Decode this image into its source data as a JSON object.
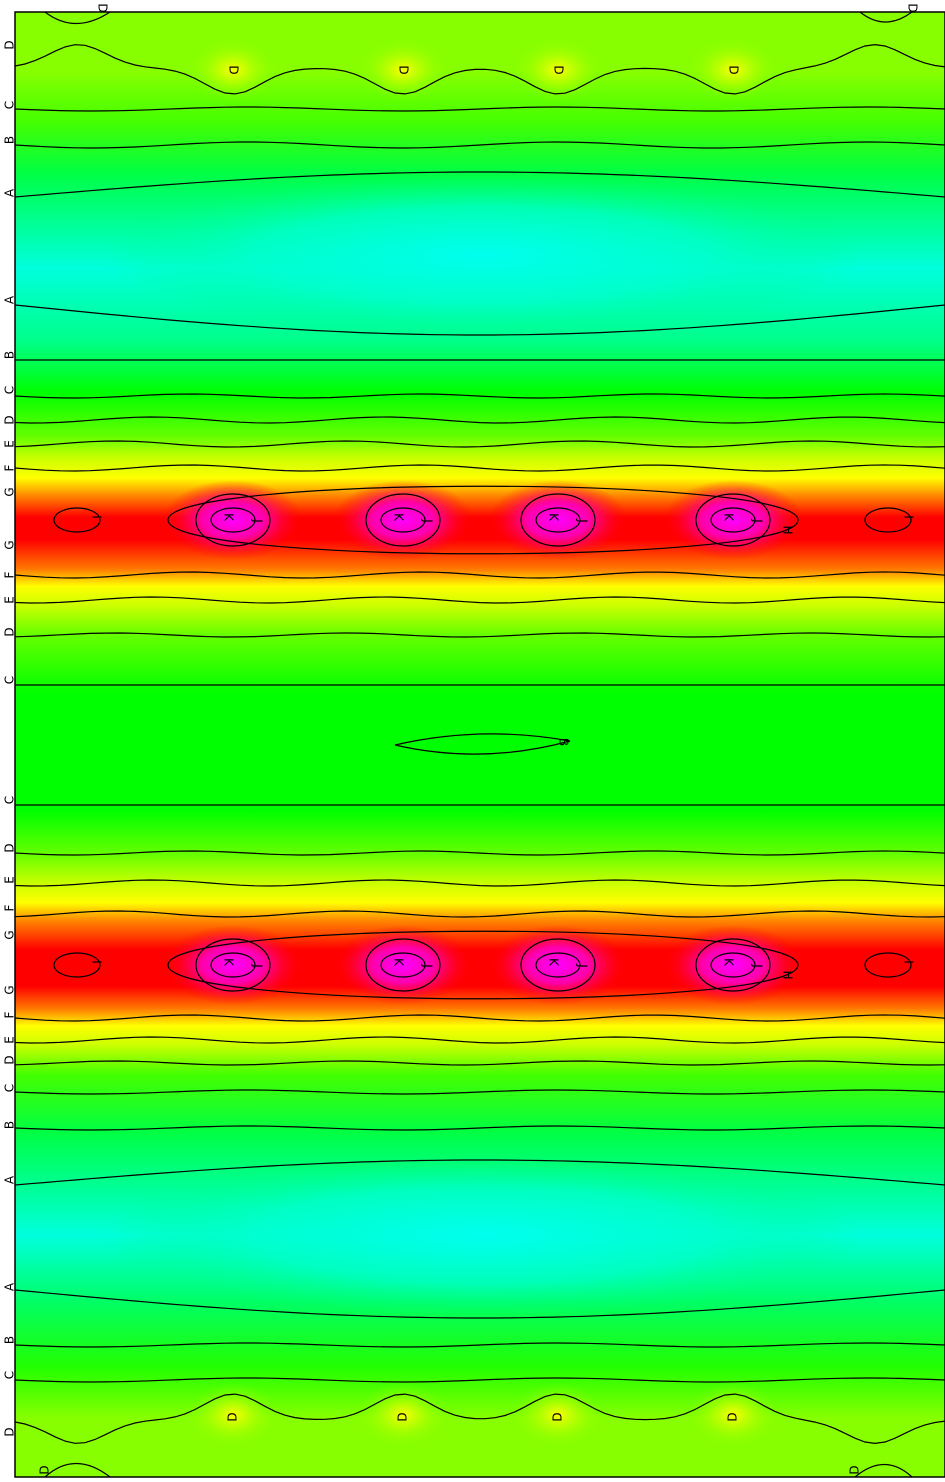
{
  "chart_data": {
    "type": "heatmap",
    "subtype": "contour",
    "title": "",
    "xlabel": "",
    "ylabel": "",
    "colormap": [
      "#00ffdd",
      "#00ff00",
      "#88ff00",
      "#ffff00",
      "#ff8800",
      "#ff0000",
      "#ff00ff"
    ],
    "levels": [
      "A",
      "B",
      "C",
      "D",
      "E",
      "F",
      "G",
      "H",
      "I",
      "J",
      "K"
    ],
    "edge_labels": [
      {
        "label": "D"
      },
      {
        "label": "C"
      },
      {
        "label": "B"
      },
      {
        "label": "A"
      },
      {
        "label": "A"
      },
      {
        "label": "B"
      },
      {
        "label": "C"
      },
      {
        "label": "D"
      },
      {
        "label": "E"
      },
      {
        "label": "F"
      },
      {
        "label": "G"
      },
      {
        "label": "G"
      },
      {
        "label": "F"
      },
      {
        "label": "E"
      },
      {
        "label": "D"
      },
      {
        "label": "C"
      },
      {
        "label": "C"
      },
      {
        "label": "D"
      },
      {
        "label": "E"
      },
      {
        "label": "F"
      },
      {
        "label": "G"
      },
      {
        "label": "G"
      },
      {
        "label": "F"
      },
      {
        "label": "E"
      },
      {
        "label": "D"
      },
      {
        "label": "C"
      },
      {
        "label": "B"
      },
      {
        "label": "A"
      },
      {
        "label": "A"
      },
      {
        "label": "B"
      },
      {
        "label": "C"
      },
      {
        "label": "D"
      }
    ],
    "top_labels": [
      "D",
      "D"
    ],
    "bottom_labels": [
      "D",
      "D"
    ],
    "peak_labels": {
      "inner": "K",
      "ring": "J",
      "outer": "I",
      "band": "H",
      "trough": "B"
    },
    "grid": false,
    "legend": "none"
  }
}
